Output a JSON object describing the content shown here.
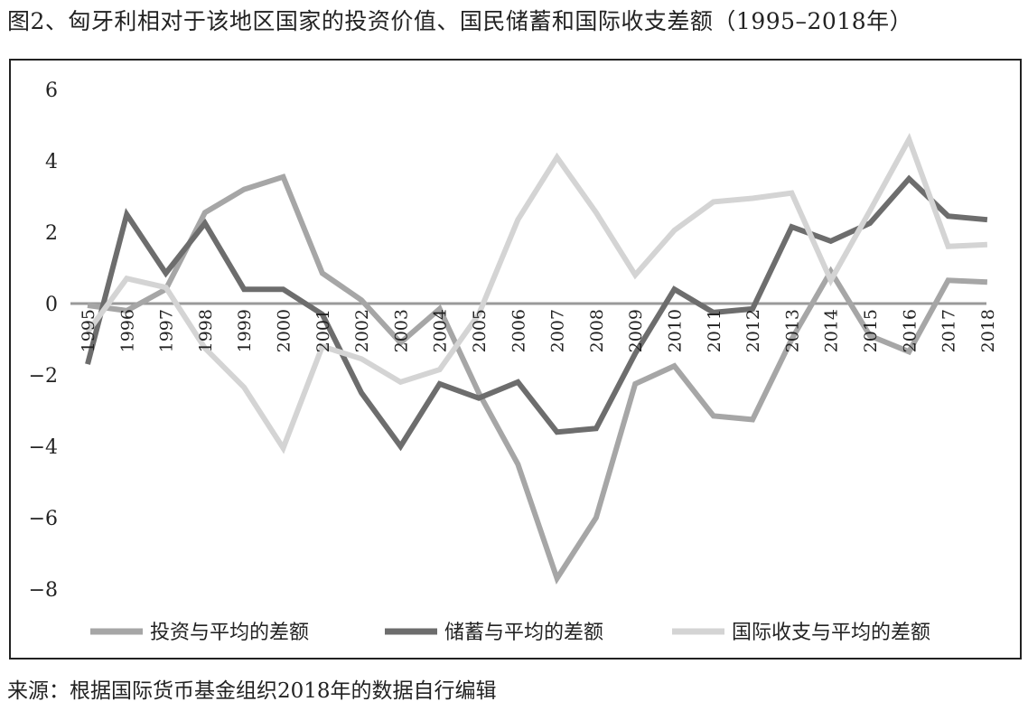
{
  "title": "图2、匈牙利相对于该地区国家的投资价值、国民储蓄和国际收支差额（1995–2018年）",
  "source": "来源：根据国际货币基金组织2018年的数据自行编辑",
  "chart_data": {
    "type": "line",
    "title": "图2、匈牙利相对于该地区国家的投资价值、国民储蓄和国际收支差额（1995–2018年）",
    "xlabel": "",
    "ylabel": "",
    "x": [
      "1995",
      "1996",
      "1997",
      "1998",
      "1999",
      "2000",
      "2001",
      "2002",
      "2003",
      "2004",
      "2005",
      "2006",
      "2007",
      "2008",
      "2009",
      "2010",
      "2011",
      "2012",
      "2013",
      "2014",
      "2015",
      "2016",
      "2017",
      "2018"
    ],
    "y_ticks": [
      "6",
      "4",
      "2",
      "0",
      "−2",
      "−4",
      "−6",
      "−8"
    ],
    "ylim": [
      -9.2,
      6
    ],
    "grid": false,
    "legend_position": "bottom",
    "series": [
      {
        "name": "投资与平均的差额",
        "color": "#a6a6a6",
        "values": [
          -0.05,
          -0.2,
          0.4,
          2.55,
          3.2,
          3.55,
          0.85,
          0.1,
          -1.1,
          -0.15,
          -2.5,
          -4.5,
          -7.7,
          -6.0,
          -2.25,
          -1.75,
          -3.15,
          -3.25,
          -1.0,
          0.9,
          -0.9,
          -1.35,
          0.65,
          0.6
        ]
      },
      {
        "name": "储蓄与平均的差额",
        "color": "#6d6d6d",
        "values": [
          -1.7,
          2.5,
          0.85,
          2.25,
          0.4,
          0.4,
          -0.3,
          -2.5,
          -4.0,
          -2.25,
          -2.65,
          -2.2,
          -3.6,
          -3.5,
          -1.4,
          0.4,
          -0.25,
          -0.15,
          2.15,
          1.75,
          2.25,
          3.5,
          2.45,
          2.35
        ]
      },
      {
        "name": "国际收支与平均的差额",
        "color": "#d4d4d4",
        "values": [
          -0.8,
          0.7,
          0.45,
          -1.25,
          -2.35,
          -4.05,
          -1.2,
          -1.55,
          -2.2,
          -1.85,
          -0.3,
          2.35,
          4.1,
          2.55,
          0.8,
          2.05,
          2.85,
          2.95,
          3.1,
          0.65,
          2.6,
          4.6,
          1.6,
          1.65
        ]
      }
    ]
  }
}
